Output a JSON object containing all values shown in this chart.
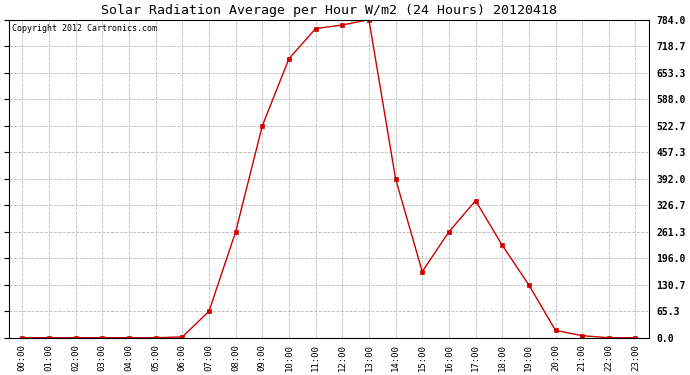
{
  "title": "Solar Radiation Average per Hour W/m2 (24 Hours) 20120418",
  "copyright_text": "Copyright 2012 Cartronics.com",
  "hours": [
    "00:00",
    "01:00",
    "02:00",
    "03:00",
    "04:00",
    "05:00",
    "06:00",
    "07:00",
    "08:00",
    "09:00",
    "10:00",
    "11:00",
    "12:00",
    "13:00",
    "14:00",
    "15:00",
    "16:00",
    "17:00",
    "18:00",
    "19:00",
    "20:00",
    "21:00",
    "22:00",
    "23:00"
  ],
  "values": [
    0,
    0,
    0,
    0,
    0,
    0,
    2,
    65,
    261,
    522,
    688,
    762,
    771,
    784,
    392,
    163,
    261,
    338,
    228,
    130,
    18,
    5,
    0,
    0
  ],
  "ymin": 0.0,
  "ymax": 784.0,
  "ytick_values": [
    0.0,
    65.3,
    130.7,
    196.0,
    261.3,
    326.7,
    392.0,
    457.3,
    522.7,
    588.0,
    653.3,
    718.7,
    784.0
  ],
  "line_color": "#cc0000",
  "marker": "s",
  "marker_size": 2.5,
  "bg_color": "#ffffff",
  "plot_bg_color": "#ffffff",
  "grid_color": "#bbbbbb",
  "grid_style": "--",
  "title_fontsize": 9.5,
  "copyright_fontsize": 6,
  "tick_fontsize": 6.5,
  "ytick_fontsize": 7
}
